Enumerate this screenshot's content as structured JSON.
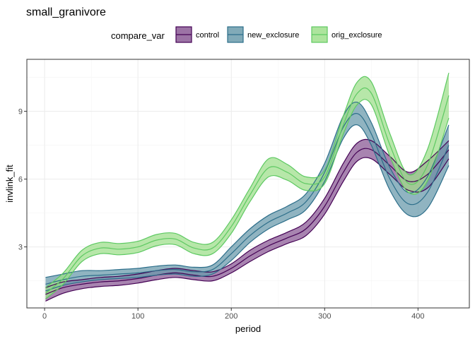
{
  "chart_data": {
    "type": "area",
    "title": "small_granivore",
    "xlabel": "period",
    "ylabel": "invlink_fit",
    "xlim": [
      -19,
      455
    ],
    "ylim": [
      0.3,
      11.3
    ],
    "xticks": [
      0,
      100,
      200,
      300,
      400
    ],
    "yticks": [
      3,
      6,
      9
    ],
    "grid": true,
    "legend": {
      "title": "compare_var",
      "placement": "top",
      "entries": [
        "control",
        "new_exclosure",
        "orig_exclosure"
      ]
    },
    "x": [
      1,
      20,
      40,
      60,
      80,
      100,
      120,
      140,
      160,
      180,
      200,
      220,
      240,
      260,
      280,
      300,
      320,
      335,
      350,
      370,
      390,
      410,
      433
    ],
    "series": [
      {
        "name": "control",
        "color": "#440154",
        "fill": "#8b5b95",
        "fit": [
          0.9,
          1.2,
          1.35,
          1.45,
          1.5,
          1.6,
          1.75,
          1.85,
          1.75,
          1.7,
          2.05,
          2.6,
          3.05,
          3.4,
          3.8,
          4.8,
          6.3,
          7.2,
          7.3,
          6.6,
          5.9,
          6.2,
          7.3
        ],
        "lower": [
          0.6,
          0.95,
          1.15,
          1.25,
          1.3,
          1.4,
          1.55,
          1.65,
          1.55,
          1.5,
          1.85,
          2.35,
          2.8,
          3.15,
          3.5,
          4.45,
          5.9,
          6.8,
          6.9,
          6.2,
          5.5,
          5.6,
          6.9
        ],
        "upper": [
          1.2,
          1.45,
          1.55,
          1.65,
          1.7,
          1.8,
          1.95,
          2.05,
          1.95,
          1.9,
          2.25,
          2.85,
          3.3,
          3.65,
          4.1,
          5.15,
          6.7,
          7.6,
          7.7,
          7.0,
          6.3,
          6.8,
          7.7
        ]
      },
      {
        "name": "new_exclosure",
        "color": "#2c6e8a",
        "fill": "#6b9bac",
        "fit": [
          1.35,
          1.55,
          1.7,
          1.75,
          1.8,
          1.85,
          1.95,
          2.0,
          1.9,
          2.0,
          2.7,
          3.5,
          4.1,
          4.5,
          5.0,
          6.3,
          8.3,
          8.9,
          8.0,
          6.0,
          4.9,
          5.4,
          7.5
        ],
        "lower": [
          1.05,
          1.3,
          1.45,
          1.55,
          1.6,
          1.65,
          1.75,
          1.8,
          1.7,
          1.8,
          2.4,
          3.2,
          3.8,
          4.2,
          4.65,
          5.9,
          7.8,
          8.4,
          7.5,
          5.5,
          4.4,
          4.7,
          6.6
        ],
        "upper": [
          1.65,
          1.8,
          1.95,
          1.95,
          2.0,
          2.05,
          2.15,
          2.2,
          2.1,
          2.2,
          3.0,
          3.8,
          4.4,
          4.8,
          5.35,
          6.7,
          8.8,
          9.4,
          8.5,
          6.5,
          5.4,
          6.1,
          8.4
        ]
      },
      {
        "name": "orig_exclosure",
        "color": "#5ec962",
        "fill": "#9fdf8c",
        "fit": [
          0.95,
          1.6,
          2.6,
          2.95,
          2.9,
          3.0,
          3.3,
          3.35,
          2.95,
          2.95,
          3.9,
          5.3,
          6.5,
          6.3,
          5.8,
          6.1,
          8.4,
          9.8,
          9.8,
          7.5,
          5.8,
          6.6,
          9.7
        ],
        "lower": [
          0.7,
          1.35,
          2.35,
          2.7,
          2.65,
          2.75,
          3.05,
          3.1,
          2.7,
          2.7,
          3.6,
          5.0,
          6.1,
          5.95,
          5.5,
          5.8,
          8.0,
          9.3,
          9.3,
          7.0,
          5.4,
          5.9,
          8.7
        ],
        "upper": [
          1.2,
          1.85,
          2.85,
          3.2,
          3.15,
          3.25,
          3.55,
          3.6,
          3.2,
          3.2,
          4.2,
          5.6,
          6.9,
          6.65,
          6.1,
          6.4,
          8.8,
          10.3,
          10.3,
          8.0,
          6.2,
          7.3,
          10.7
        ]
      }
    ]
  }
}
